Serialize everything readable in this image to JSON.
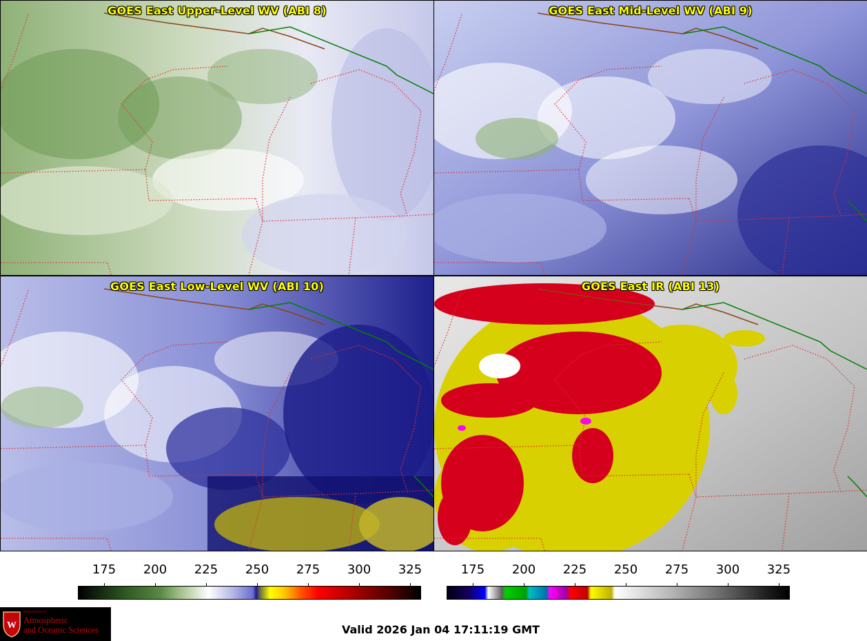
{
  "panels": [
    {
      "id": "p1",
      "title": "GOES East Upper-Level WV (ABI 8)",
      "colors": {
        "background": "#e6e8f0",
        "cloud_green": "#6f9a55",
        "moist_white": "#ffffff",
        "dry_blue": "#b9bce4"
      }
    },
    {
      "id": "p2",
      "title": "GOES East Mid-Level WV (ABI 9)",
      "colors": {
        "background": "#9aa0dc",
        "cloud_green": "#8fb277",
        "moist_white": "#ffffff",
        "dry_blue": "#2c2f96"
      }
    },
    {
      "id": "p3",
      "title": "GOES East Low-Level WV (ABI 10)",
      "colors": {
        "background": "#2a2c9a",
        "cloud_green": "#9fbe88",
        "moist_white": "#ffffff",
        "dry_blue": "#10106e",
        "warm_yellow": "#b0a418"
      }
    },
    {
      "id": "p4",
      "title": "GOES East IR (ABI 13)",
      "colors": {
        "background": "#c8c8c8",
        "cold_red": "#d4001c",
        "cool_yellow": "#d8d000",
        "very_cold_magenta": "#ff00ff",
        "clear_gray": "#a8a8a8"
      }
    }
  ],
  "map_overlay": {
    "state_border_color": "#e03030",
    "coast_color": "#8b4513",
    "intl_border_color": "#008000"
  },
  "colorbars": {
    "wv": {
      "ticks": [
        "175",
        "200",
        "225",
        "250",
        "275",
        "300",
        "325"
      ]
    },
    "ir": {
      "ticks": [
        "175",
        "200",
        "225",
        "250",
        "275",
        "300",
        "325"
      ]
    }
  },
  "logo": {
    "line1": "Department of",
    "line2": "Atmospheric",
    "line3": "and Oceanic Sciences"
  },
  "footer": {
    "valid": "Valid 2026 Jan 04 17:11:19 GMT"
  }
}
